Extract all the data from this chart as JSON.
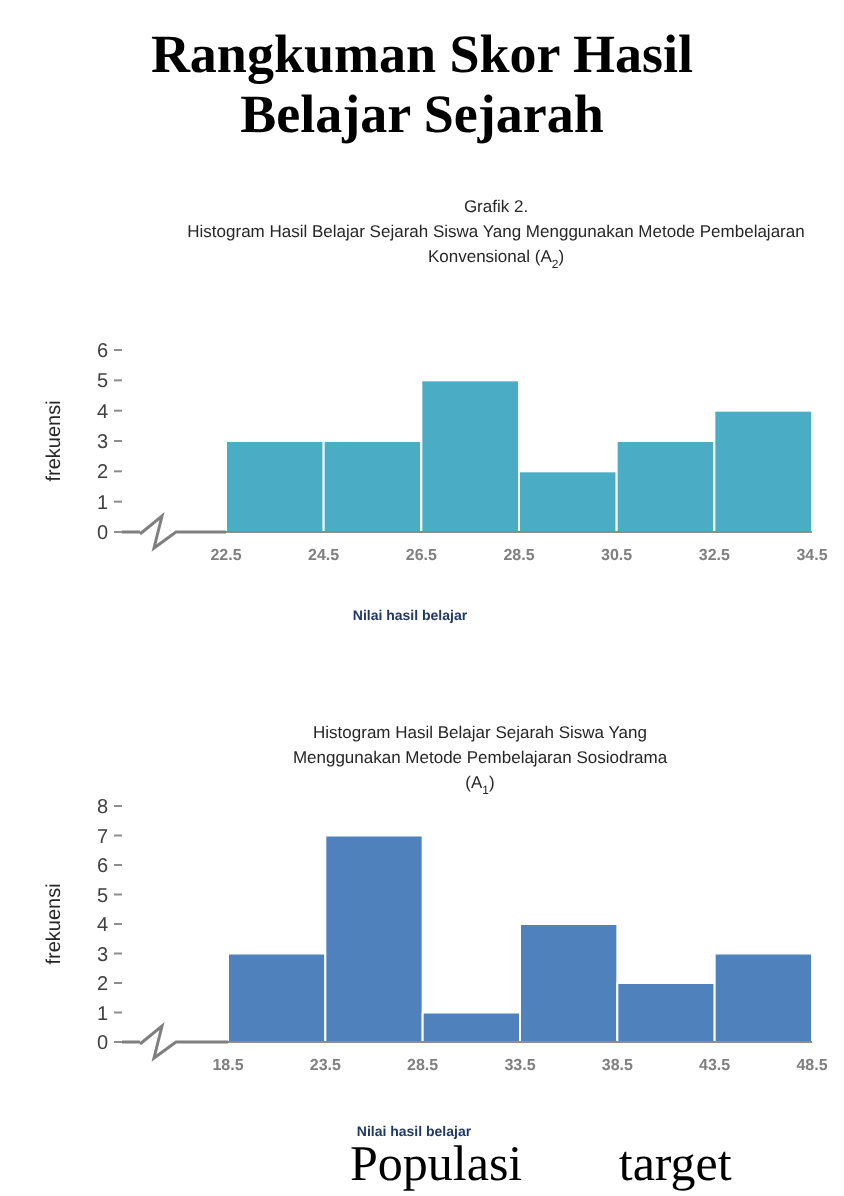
{
  "chart_data": [
    {
      "type": "other",
      "title": "Rangkuman Skor Hasil Belajar Sejarah",
      "annotations": [
        "Populasi target"
      ]
    },
    {
      "type": "histogram",
      "title": "Grafik 2.",
      "subtitle": "Histogram Hasil Belajar Sejarah Siswa Yang Menggunakan Metode Pembelajaran Konvensional (A$_{2}$)",
      "xlabel": "Nilai hasil belajar",
      "ylabel": "frekuensi",
      "color": "#4bacc6",
      "bins": [
        22.5,
        24.5,
        26.5,
        28.5,
        30.5,
        32.5,
        34.5
      ],
      "values": [
        3,
        3,
        5,
        2,
        3,
        4
      ],
      "xlim": [
        22.5,
        34.5
      ],
      "xticks": [
        22.5,
        24.5,
        26.5,
        28.5,
        30.5,
        32.5,
        34.5
      ],
      "ylim": [
        0,
        6
      ],
      "yticks": [
        0,
        1,
        2,
        3,
        4,
        5,
        6
      ],
      "grid": false
    },
    {
      "type": "histogram",
      "title": "Histogram Hasil Belajar Sejarah Siswa Yang Menggunakan Metode Pembelajaran Sosiodrama (A$_{1}$)",
      "xlabel": "Nilai hasil belajar",
      "ylabel": "frekuensi",
      "color": "#4f81bd",
      "bins": [
        18.5,
        23.5,
        28.5,
        33.5,
        38.5,
        43.5,
        48.5
      ],
      "values": [
        3,
        7,
        1,
        4,
        2,
        3
      ],
      "xlim": [
        18.5,
        48.5
      ],
      "xticks": [
        18.5,
        23.5,
        28.5,
        33.5,
        38.5,
        43.5,
        48.5
      ],
      "ylim": [
        0,
        8
      ],
      "yticks": [
        0,
        1,
        2,
        3,
        4,
        5,
        6,
        7,
        8
      ],
      "grid": false
    }
  ]
}
